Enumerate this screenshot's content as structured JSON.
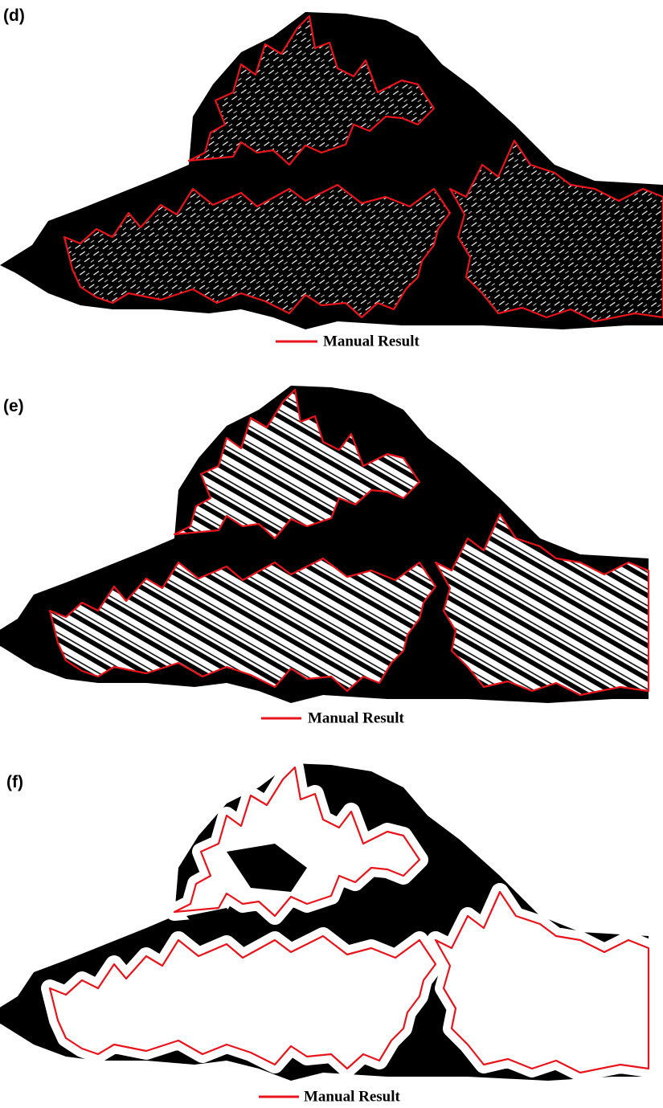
{
  "panels": [
    {
      "label": "(d)",
      "legend": "Manual Result"
    },
    {
      "label": "(e)",
      "legend": "Manual Result"
    },
    {
      "label": "(f)",
      "legend": "Manual Result"
    }
  ]
}
